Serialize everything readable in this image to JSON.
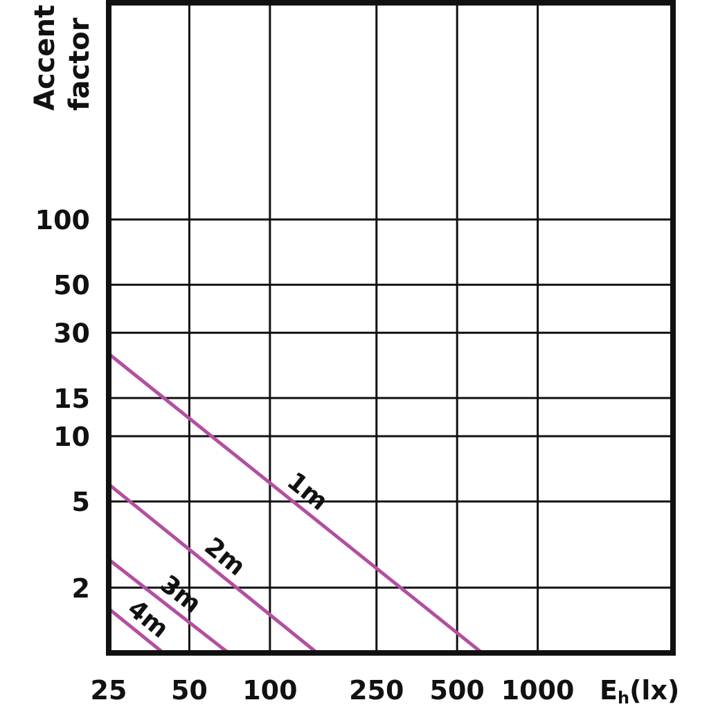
{
  "chart_data": {
    "type": "line",
    "title": "",
    "ylabel_lines": [
      "Accent",
      "factor"
    ],
    "xlabel": {
      "main": "E",
      "sub": "h",
      "unit": "(lx)"
    },
    "x_scale": "log",
    "y_scale": "log",
    "x_ticks": [
      25,
      50,
      100,
      250,
      500,
      1000
    ],
    "x_tick_labels": [
      "25",
      "50",
      "100",
      "250",
      "500",
      "1000"
    ],
    "y_ticks": [
      2,
      5,
      10,
      15,
      30,
      50,
      100
    ],
    "y_tick_labels": [
      "2",
      "5",
      "10",
      "15",
      "30",
      "50",
      "100"
    ],
    "xlim": [
      25,
      3200
    ],
    "ylim": [
      1,
      1000
    ],
    "grid": true,
    "line_color": "#b2509f",
    "series": [
      {
        "name": "1m",
        "x": [
          25,
          620
        ],
        "y": [
          24,
          1
        ]
      },
      {
        "name": "2m",
        "x": [
          25,
          150
        ],
        "y": [
          6,
          1
        ]
      },
      {
        "name": "3m",
        "x": [
          25,
          70
        ],
        "y": [
          2.7,
          1
        ]
      },
      {
        "name": "4m",
        "x": [
          25,
          40
        ],
        "y": [
          1.6,
          1
        ]
      }
    ]
  }
}
